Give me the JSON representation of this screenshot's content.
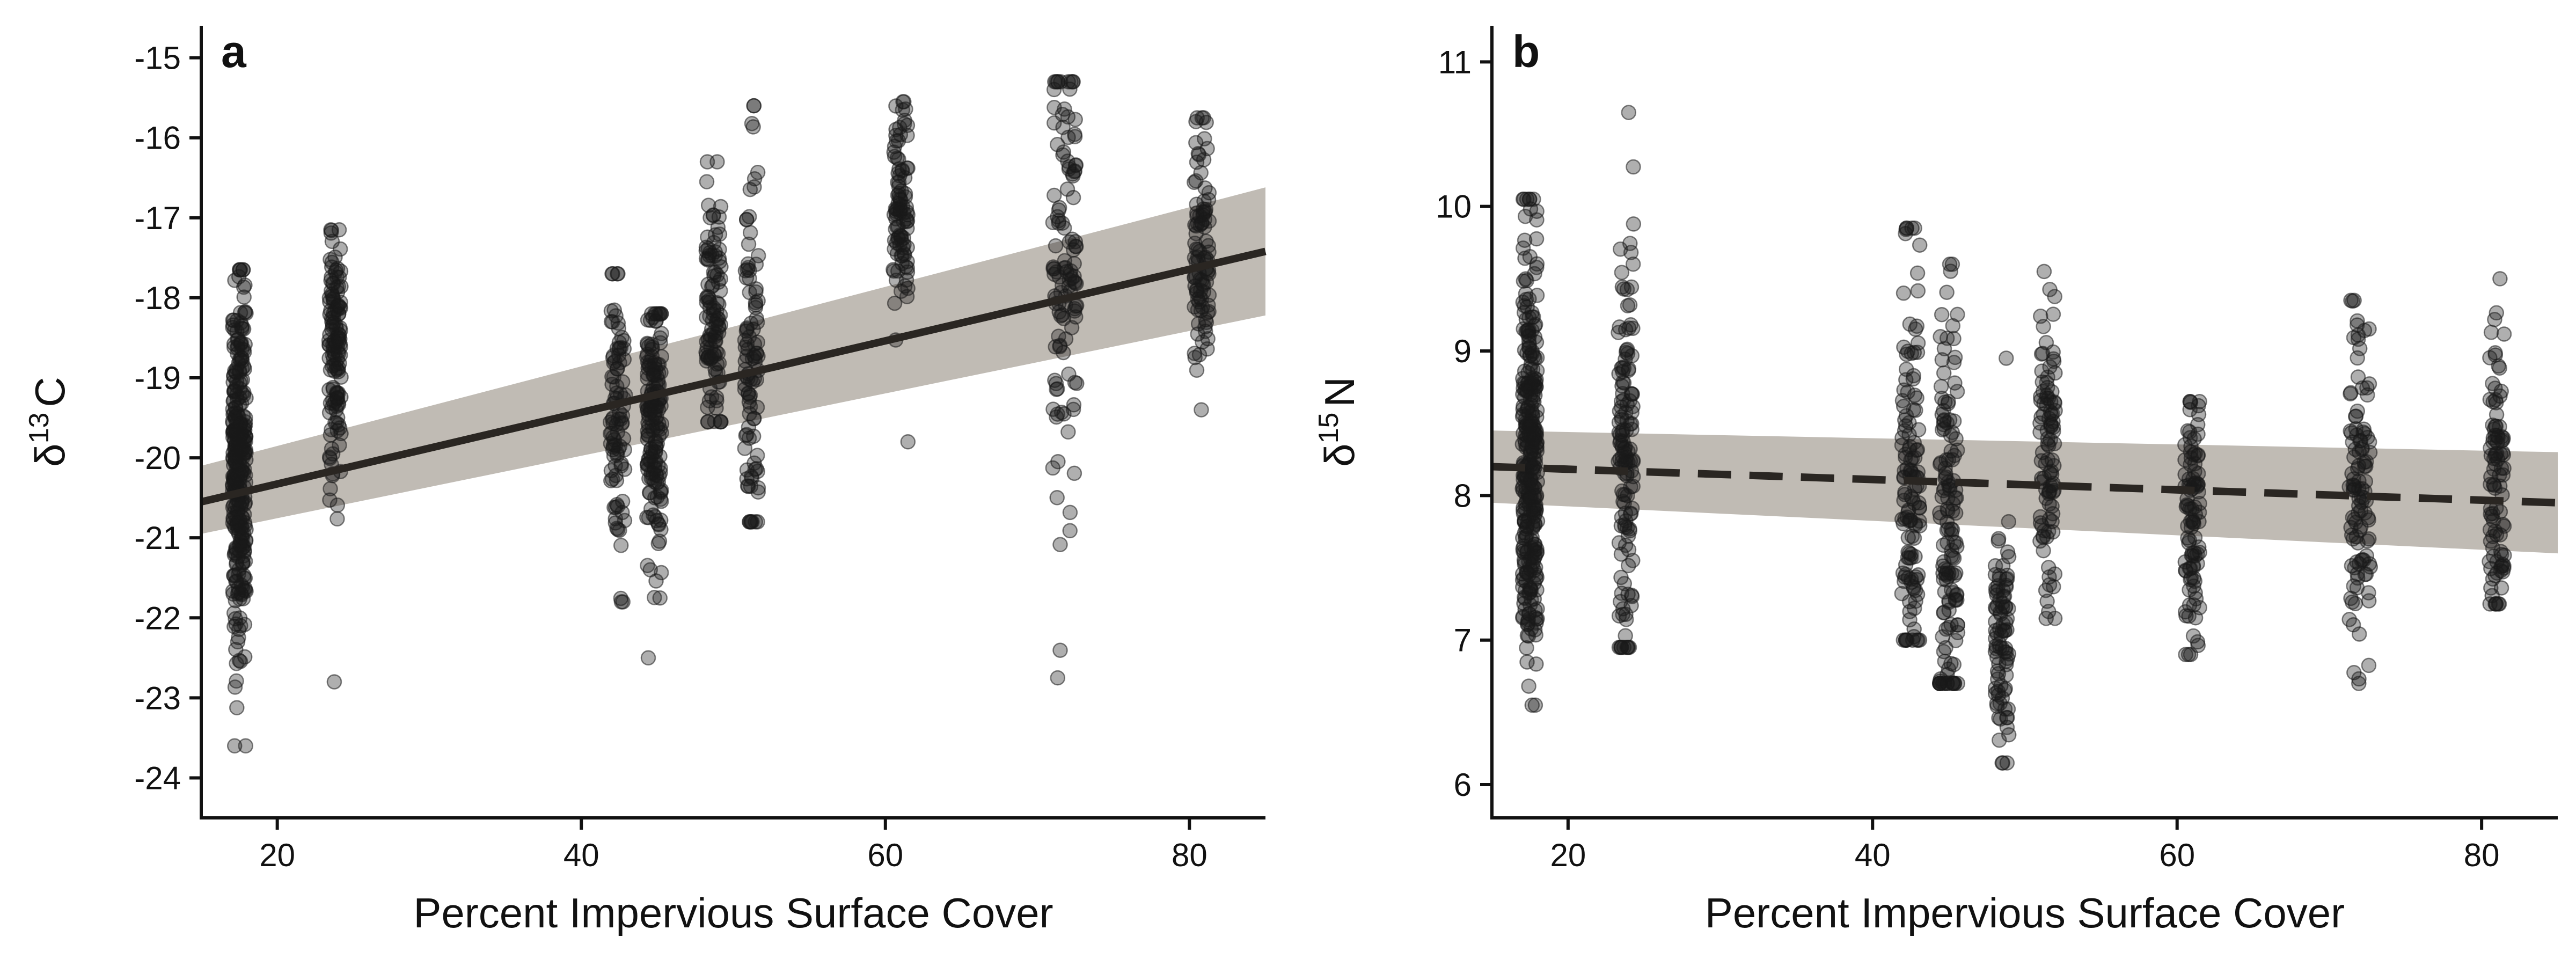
{
  "chart_data": [
    {
      "panel": "a",
      "type": "scatter",
      "title": "",
      "xlabel": "Percent Impervious Surface Cover",
      "ylabel": "δ13C",
      "ylabel_parts": {
        "symbol": "δ",
        "superscript": "13",
        "element": "C"
      },
      "xlim": [
        15,
        85
      ],
      "ylim": [
        -24.5,
        -14.6
      ],
      "x_ticks": [
        20,
        40,
        60,
        80
      ],
      "x_tick_labels": [
        "20",
        "40",
        "60",
        "80"
      ],
      "y_ticks": [
        -24,
        -23,
        -22,
        -21,
        -20,
        -19,
        -18,
        -17,
        -16,
        -15
      ],
      "y_tick_labels": [
        "-24",
        "-23",
        "-22",
        "-21",
        "-20",
        "-19",
        "-18",
        "-17",
        "-16",
        "-15"
      ],
      "grid": false,
      "legend": "none",
      "point_color": "#1a1a1a",
      "point_opacity": 0.35,
      "fit": {
        "line_style": "solid",
        "x": [
          15,
          85
        ],
        "y": [
          -20.55,
          -17.42
        ],
        "ci_lower": [
          -20.95,
          -18.22
        ],
        "ci_upper": [
          -20.1,
          -16.62
        ],
        "line_color": "#2a2622",
        "band_color": "#bdb7b0"
      },
      "groups": [
        {
          "x_center": 17.5,
          "jitter": 0.45,
          "n": 340,
          "y_min": -23.6,
          "y_max": -17.65,
          "y_mean": -20.1,
          "y_sd": 1.1
        },
        {
          "x_center": 23.8,
          "jitter": 0.4,
          "n": 140,
          "y_min": -22.8,
          "y_max": -17.15,
          "y_mean": -18.8,
          "y_sd": 0.75
        },
        {
          "x_center": 42.4,
          "jitter": 0.5,
          "n": 95,
          "y_min": -21.8,
          "y_max": -17.7,
          "y_mean": -19.5,
          "y_sd": 0.8
        },
        {
          "x_center": 44.8,
          "jitter": 0.5,
          "n": 170,
          "y_min": -22.5,
          "y_max": -18.2,
          "y_mean": -19.6,
          "y_sd": 0.9
        },
        {
          "x_center": 48.7,
          "jitter": 0.5,
          "n": 110,
          "y_min": -19.55,
          "y_max": -16.3,
          "y_mean": -18.3,
          "y_sd": 0.8
        },
        {
          "x_center": 51.2,
          "jitter": 0.45,
          "n": 100,
          "y_min": -20.8,
          "y_max": -15.6,
          "y_mean": -18.7,
          "y_sd": 1.1
        },
        {
          "x_center": 61.0,
          "jitter": 0.5,
          "n": 100,
          "y_min": -19.8,
          "y_max": -15.55,
          "y_mean": -16.8,
          "y_sd": 0.65
        },
        {
          "x_center": 71.8,
          "jitter": 0.8,
          "n": 120,
          "y_min": -22.75,
          "y_max": -15.3,
          "y_mean": -17.9,
          "y_sd": 1.5
        },
        {
          "x_center": 80.8,
          "jitter": 0.5,
          "n": 100,
          "y_min": -19.4,
          "y_max": -15.75,
          "y_mean": -17.4,
          "y_sd": 0.8
        }
      ]
    },
    {
      "panel": "b",
      "type": "scatter",
      "title": "",
      "xlabel": "Percent Impervious Surface Cover",
      "ylabel": "δ15N",
      "ylabel_parts": {
        "symbol": "δ",
        "superscript": "15",
        "element": "N"
      },
      "xlim": [
        15,
        85
      ],
      "ylim": [
        5.77,
        11.25
      ],
      "x_ticks": [
        20,
        40,
        60,
        80
      ],
      "x_tick_labels": [
        "20",
        "40",
        "60",
        "80"
      ],
      "y_ticks": [
        6,
        7,
        8,
        9,
        10,
        11
      ],
      "y_tick_labels": [
        "6",
        "7",
        "8",
        "9",
        "10",
        "11"
      ],
      "grid": false,
      "legend": "none",
      "point_color": "#1a1a1a",
      "point_opacity": 0.35,
      "fit": {
        "line_style": "dashed",
        "x": [
          15,
          85
        ],
        "y": [
          8.2,
          7.95
        ],
        "ci_lower": [
          7.95,
          7.6
        ],
        "ci_upper": [
          8.45,
          8.3
        ],
        "line_color": "#2a2622",
        "band_color": "#bdb7b0"
      },
      "groups": [
        {
          "x_center": 17.5,
          "jitter": 0.5,
          "n": 340,
          "y_min": 6.55,
          "y_max": 10.05,
          "y_mean": 8.3,
          "y_sd": 0.75
        },
        {
          "x_center": 23.8,
          "jitter": 0.5,
          "n": 140,
          "y_min": 6.95,
          "y_max": 10.65,
          "y_mean": 8.3,
          "y_sd": 0.75
        },
        {
          "x_center": 42.5,
          "jitter": 0.6,
          "n": 130,
          "y_min": 7.0,
          "y_max": 9.85,
          "y_mean": 8.1,
          "y_sd": 0.7
        },
        {
          "x_center": 45.0,
          "jitter": 0.6,
          "n": 140,
          "y_min": 6.7,
          "y_max": 9.6,
          "y_mean": 7.8,
          "y_sd": 0.7
        },
        {
          "x_center": 48.5,
          "jitter": 0.45,
          "n": 90,
          "y_min": 6.15,
          "y_max": 8.95,
          "y_mean": 7.0,
          "y_sd": 0.4
        },
        {
          "x_center": 51.5,
          "jitter": 0.5,
          "n": 100,
          "y_min": 7.15,
          "y_max": 9.55,
          "y_mean": 8.3,
          "y_sd": 0.55
        },
        {
          "x_center": 61.0,
          "jitter": 0.5,
          "n": 100,
          "y_min": 6.9,
          "y_max": 8.65,
          "y_mean": 7.75,
          "y_sd": 0.45
        },
        {
          "x_center": 72.0,
          "jitter": 0.7,
          "n": 110,
          "y_min": 6.7,
          "y_max": 9.35,
          "y_mean": 8.0,
          "y_sd": 0.65
        },
        {
          "x_center": 81.0,
          "jitter": 0.5,
          "n": 100,
          "y_min": 7.25,
          "y_max": 9.5,
          "y_mean": 8.05,
          "y_sd": 0.5
        }
      ]
    }
  ]
}
